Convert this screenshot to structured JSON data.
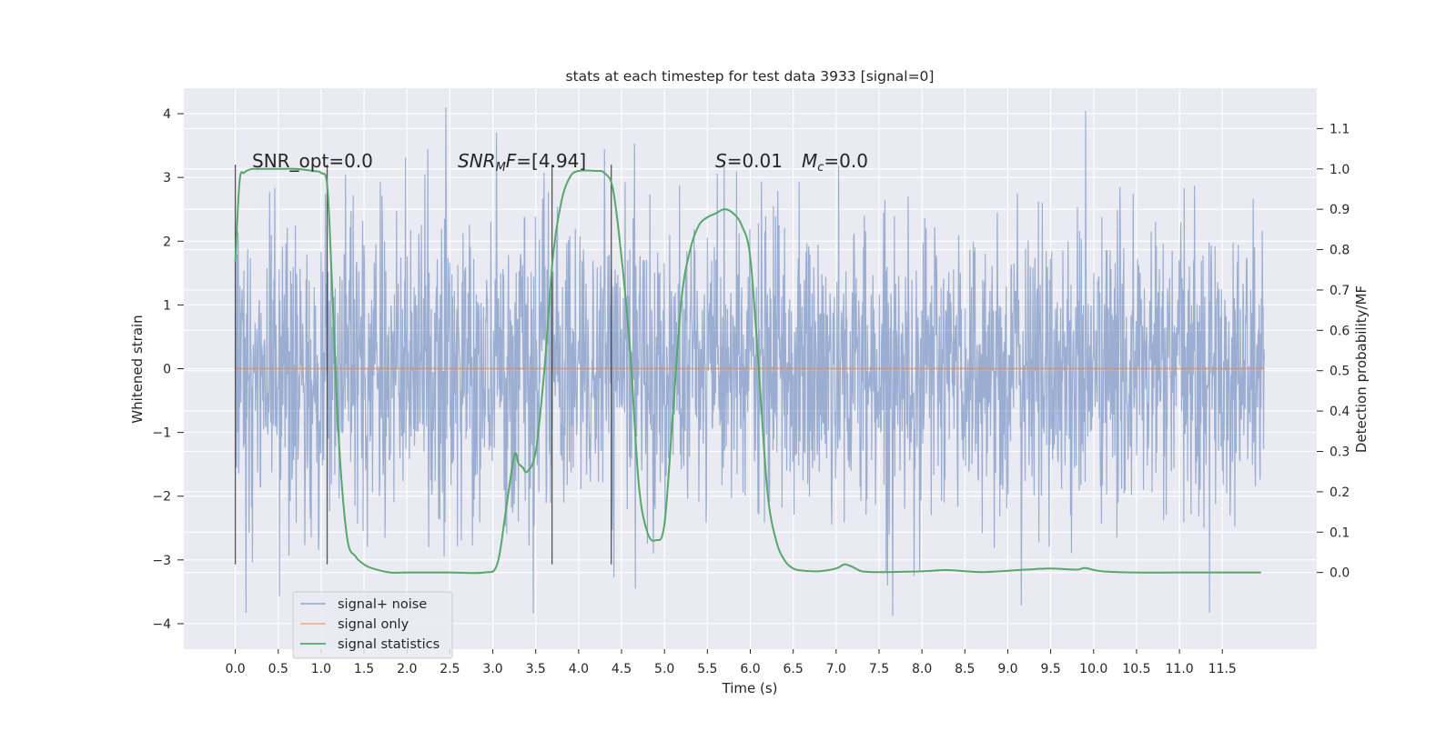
{
  "chart_data": {
    "type": "line",
    "title": "stats at each timestep for test data 3933 [signal=0]",
    "xlabel": "Time (s)",
    "ylabel": "Whitened strain",
    "y2label": "Detection probability/MF",
    "xlim": [
      -0.6,
      12.6
    ],
    "ylim": [
      -4.4,
      4.4
    ],
    "y2lim": [
      -0.19,
      1.2
    ],
    "x_ticks": [
      0.0,
      0.5,
      1.0,
      1.5,
      2.0,
      2.5,
      3.0,
      3.5,
      4.0,
      4.5,
      5.0,
      5.5,
      6.0,
      6.5,
      7.0,
      7.5,
      8.0,
      8.5,
      9.0,
      9.5,
      10.0,
      10.5,
      11.0,
      11.5
    ],
    "x_tick_labels": [
      "0.0",
      "0.5",
      "1.0",
      "1.5",
      "2.0",
      "2.5",
      "3.0",
      "3.5",
      "4.0",
      "4.5",
      "5.0",
      "5.5",
      "6.0",
      "6.5",
      "7.0",
      "7.5",
      "8.0",
      "8.5",
      "9.0",
      "9.5",
      "10.0",
      "10.5",
      "11.0",
      "11.5"
    ],
    "y_ticks": [
      -4,
      -3,
      -2,
      -1,
      0,
      1,
      2,
      3,
      4
    ],
    "y_tick_labels": [
      "−4",
      "−3",
      "−2",
      "−1",
      "0",
      "1",
      "2",
      "3",
      "4"
    ],
    "y2_ticks": [
      0.0,
      0.1,
      0.2,
      0.3,
      0.4,
      0.5,
      0.6,
      0.7,
      0.8,
      0.9,
      1.0,
      1.1
    ],
    "y2_tick_labels": [
      "0.0",
      "0.1",
      "0.2",
      "0.3",
      "0.4",
      "0.5",
      "0.6",
      "0.7",
      "0.8",
      "0.9",
      "1.0",
      "1.1"
    ],
    "grid": true,
    "legend_position": "lower-left",
    "annotations": {
      "snr_opt": "SNR_opt=0.0",
      "snr_mf_symbol": "SNR",
      "snr_mf_sub": "M",
      "snr_mf_tail": "F",
      "snr_mf_value": "=[4.94]",
      "s_symbol": "S",
      "s_value": "=0.01",
      "mc_symbol": "M",
      "mc_sub": "c",
      "mc_value": "=0.0"
    },
    "vlines": [
      0.0,
      1.07,
      3.69,
      4.38
    ],
    "series": [
      {
        "name": "signal+ noise",
        "color": "#4c72b0",
        "kind": "noise",
        "x_range": [
          0.0,
          11.99
        ],
        "typical_range": [
          -2.0,
          2.0
        ],
        "extremes": [
          -3.95,
          4.1
        ]
      },
      {
        "name": "signal only",
        "color": "#dd8452",
        "kind": "flat",
        "x": [
          0.0,
          11.99
        ],
        "y": [
          0.0,
          0.0
        ]
      },
      {
        "name": "signal statistics",
        "color": "#55a868",
        "kind": "probability",
        "axis": "right",
        "x": [
          0.0,
          0.05,
          0.1,
          0.15,
          0.2,
          0.3,
          0.5,
          0.7,
          0.9,
          1.0,
          1.07,
          1.12,
          1.2,
          1.3,
          1.4,
          1.5,
          1.6,
          1.8,
          2.0,
          2.5,
          2.9,
          3.05,
          3.15,
          3.25,
          3.3,
          3.35,
          3.4,
          3.5,
          3.6,
          3.7,
          3.8,
          3.9,
          4.0,
          4.2,
          4.3,
          4.4,
          4.5,
          4.6,
          4.7,
          4.8,
          4.9,
          5.0,
          5.1,
          5.2,
          5.3,
          5.4,
          5.5,
          5.6,
          5.7,
          5.8,
          5.9,
          6.0,
          6.1,
          6.2,
          6.3,
          6.4,
          6.5,
          6.6,
          6.8,
          7.0,
          7.1,
          7.2,
          7.3,
          7.5,
          8.0,
          8.3,
          8.7,
          9.2,
          9.5,
          9.8,
          9.9,
          10.1,
          10.5,
          11.0,
          11.5,
          11.95
        ],
        "y": [
          0.77,
          0.97,
          0.99,
          0.997,
          1.0,
          1.0,
          1.0,
          1.0,
          0.995,
          0.99,
          0.96,
          0.75,
          0.35,
          0.09,
          0.04,
          0.02,
          0.01,
          0.0,
          0.0,
          0.0,
          0.0,
          0.02,
          0.15,
          0.29,
          0.27,
          0.26,
          0.25,
          0.3,
          0.5,
          0.78,
          0.92,
          0.98,
          0.995,
          0.995,
          0.99,
          0.95,
          0.78,
          0.55,
          0.22,
          0.1,
          0.08,
          0.12,
          0.4,
          0.68,
          0.8,
          0.86,
          0.88,
          0.89,
          0.9,
          0.89,
          0.86,
          0.78,
          0.5,
          0.2,
          0.08,
          0.03,
          0.01,
          0.005,
          0.003,
          0.01,
          0.02,
          0.013,
          0.003,
          0.001,
          0.003,
          0.006,
          0.001,
          0.007,
          0.01,
          0.007,
          0.011,
          0.003,
          0.0,
          0.0,
          0.0,
          0.0
        ]
      }
    ]
  }
}
